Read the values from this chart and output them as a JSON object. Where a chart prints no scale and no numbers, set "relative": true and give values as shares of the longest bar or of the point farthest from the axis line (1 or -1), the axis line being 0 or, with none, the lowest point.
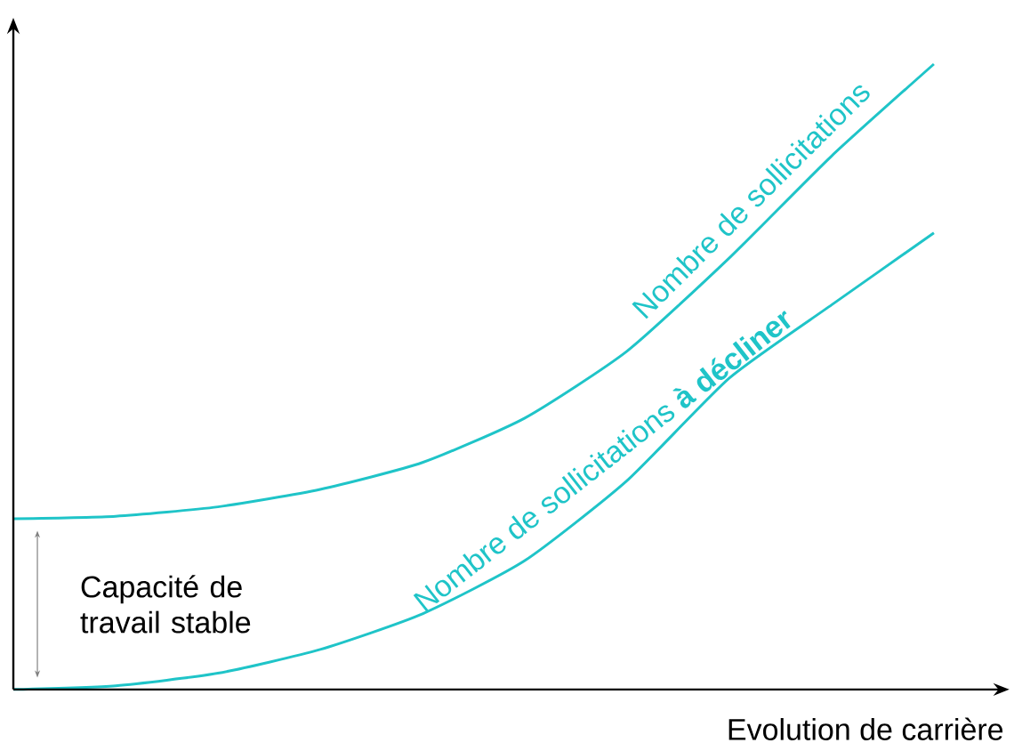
{
  "chart_data": {
    "type": "line",
    "relative": true,
    "xlabel": "Evolution de carrière",
    "categories": [
      null,
      null,
      null,
      null,
      null,
      null,
      null,
      null,
      null,
      null
    ],
    "series": [
      {
        "name": "Nombre de sollicitations",
        "color": "#1fc4c8",
        "values": [
          0.273,
          0.277,
          0.292,
          0.32,
          0.363,
          0.434,
          0.541,
          0.69,
          0.853,
          1
        ]
      },
      {
        "name": "Nombre de sollicitations **à décliner**",
        "color": "#1fc4c8",
        "values": [
          0,
          0.006,
          0.026,
          0.064,
          0.121,
          0.206,
          0.334,
          0.498,
          0.615,
          0.73
        ]
      }
    ],
    "annotations": [
      "Capacité de travail stable"
    ]
  }
}
